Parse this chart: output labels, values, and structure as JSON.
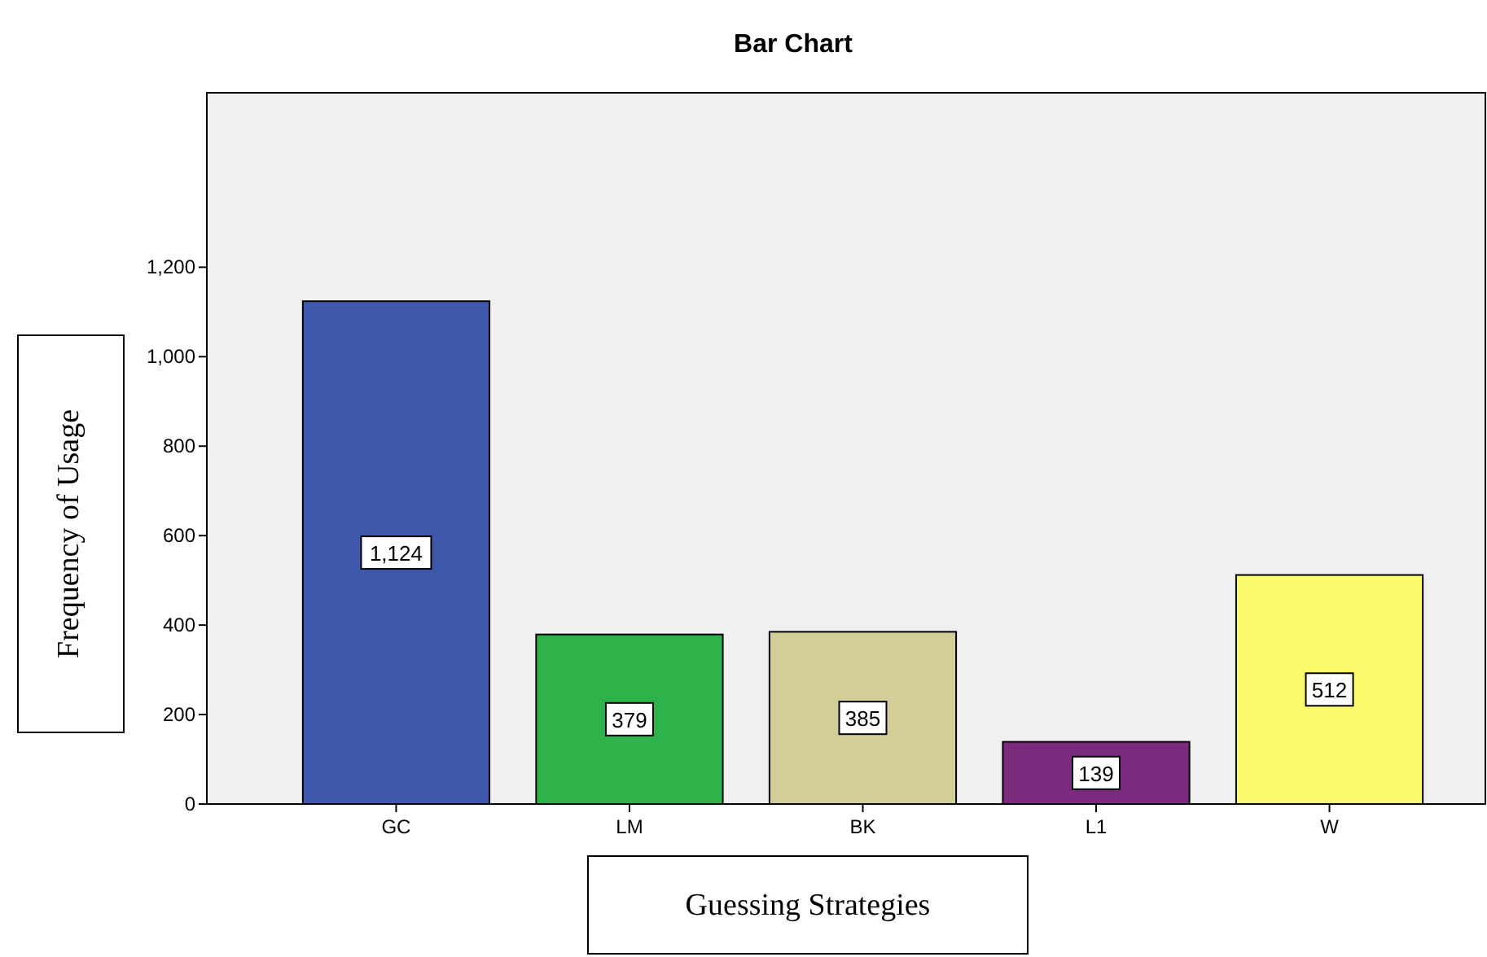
{
  "chart_data": {
    "type": "bar",
    "title": "Bar Chart",
    "xlabel": "Guessing Strategies",
    "ylabel": "Frequency of Usage",
    "categories": [
      "GC",
      "LM",
      "BK",
      "L1",
      "W"
    ],
    "values": [
      1124,
      379,
      385,
      139,
      512
    ],
    "colors": [
      "#3e58ac",
      "#2db34a",
      "#d3ce97",
      "#7b2a7e",
      "#fbf96c"
    ],
    "value_labels": [
      "1,124",
      "379",
      "385",
      "139",
      "512"
    ],
    "ylim": [
      0,
      1590
    ],
    "yticks": [
      0,
      200,
      400,
      600,
      800,
      {
        "value": 1000,
        "label": "1,000"
      },
      {
        "value": 1200,
        "label": "1,200"
      }
    ],
    "grid": false
  }
}
